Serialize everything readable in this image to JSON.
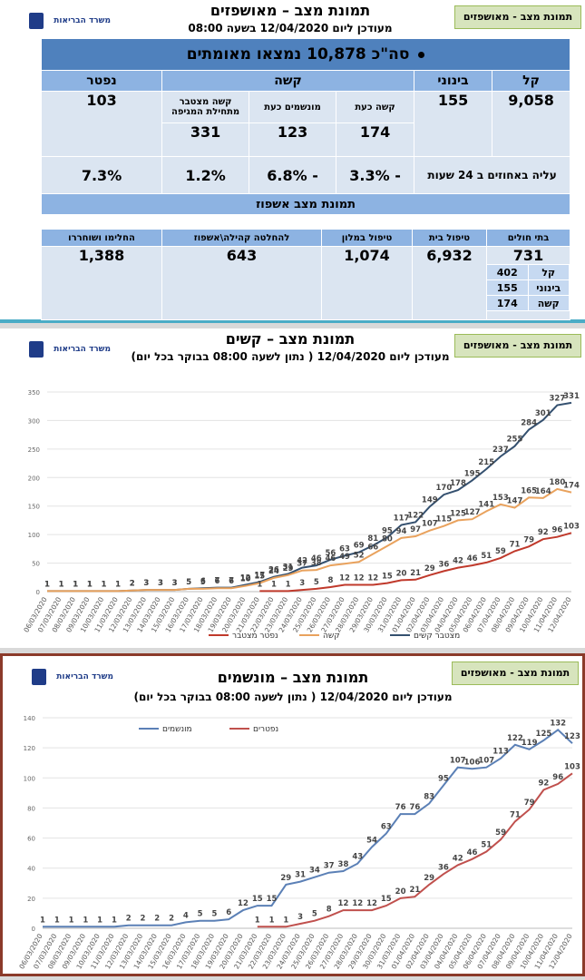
{
  "summary": {
    "badge": "תמונת מצב - מאושפזים",
    "title": "תמונת מצב – מאושפזים",
    "subtitle": "מעודכן ליום 12/04/2020 בשעה 08:00",
    "logo": "משרד הבריאות",
    "table": {
      "banner": "סה\"כ 10,878 נמצאו מאומתים",
      "columns": [
        "קל",
        "בינוני",
        "קשה",
        "נפטר"
      ],
      "severe_columns": [
        "קשה כעת",
        "מונשמים כעת",
        "קשה מצטבר מתחילת המגיפה"
      ],
      "mild": "9,058",
      "moderate": "155",
      "severe_values": [
        "174",
        "123",
        "331"
      ],
      "dead": "103",
      "change_label": "עליה באחוזים ב 24 שעות",
      "changes": [
        "- 3.3%",
        "- 6.8%",
        "1.2%",
        "7.3%"
      ],
      "hosp_title": "תמונת מצב אשפוז",
      "hosp_columns": [
        "בתי חולים",
        "טיפול בית",
        "טיפול במלון",
        "להחלטה קהילה\\אשפוז",
        "החלימו ושוחררו"
      ],
      "hosp_values": [
        "731",
        "6,932",
        "1,074",
        "643",
        "1,388"
      ],
      "hosp_breakdown": [
        [
          "קל",
          "402"
        ],
        [
          "בינוני",
          "155"
        ],
        [
          "קשה",
          "174"
        ]
      ]
    }
  },
  "chart_data": [
    {
      "type": "line",
      "badge": "תמונת מצב - מאושפזים",
      "logo": "משרד הבריאות",
      "title": "תמונת מצב – קשים",
      "subtitle": "מעודכן ליום 12/04/2020 ( נתון לשעה 08:00 בבוקר בכל יום)",
      "categories": [
        "06/03/2020",
        "07/03/2020",
        "08/03/2020",
        "09/03/2020",
        "10/03/2020",
        "11/03/2020",
        "12/03/2020",
        "13/03/2020",
        "14/03/2020",
        "15/03/2020",
        "16/03/2020",
        "17/03/2020",
        "18/03/2020",
        "19/03/2020",
        "20/03/2020",
        "21/03/2020",
        "22/03/2020",
        "23/03/2020",
        "24/03/2020",
        "25/03/2020",
        "26/03/2020",
        "27/03/2020",
        "28/03/2020",
        "29/03/2020",
        "30/03/2020",
        "31/03/2020",
        "01/04/2020",
        "02/04/2020",
        "03/04/2020",
        "04/04/2020",
        "05/04/2020",
        "06/04/2020",
        "07/04/2020",
        "08/04/2020",
        "09/04/2020",
        "10/04/2020",
        "11/04/2020",
        "12/04/2020"
      ],
      "series": [
        {
          "name": "מצטבר קשים",
          "color": "#34506f",
          "values": [
            1,
            1,
            1,
            1,
            1,
            1,
            2,
            3,
            3,
            3,
            5,
            6,
            7,
            7,
            12,
            17,
            26,
            31,
            42,
            46,
            56,
            63,
            69,
            81,
            95,
            117,
            122,
            149,
            170,
            178,
            195,
            215,
            237,
            255,
            284,
            301,
            327,
            331
          ]
        },
        {
          "name": "קשה",
          "color": "#e9a25d",
          "values": [
            1,
            1,
            1,
            1,
            1,
            1,
            2,
            3,
            3,
            3,
            5,
            5,
            6,
            6,
            10,
            15,
            24,
            29,
            37,
            38,
            46,
            49,
            52,
            66,
            80,
            94,
            97,
            107,
            115,
            125,
            127,
            141,
            153,
            147,
            165,
            164,
            180,
            174
          ]
        },
        {
          "name": "נפטר מצטבר",
          "color": "#c0392b",
          "values": [
            null,
            null,
            null,
            null,
            null,
            null,
            null,
            null,
            null,
            null,
            null,
            null,
            null,
            null,
            null,
            1,
            1,
            1,
            3,
            5,
            8,
            12,
            12,
            12,
            15,
            20,
            21,
            29,
            36,
            42,
            46,
            51,
            59,
            71,
            79,
            92,
            96,
            103
          ]
        }
      ],
      "ylim": [
        0,
        350
      ],
      "yticks": [
        0,
        50,
        100,
        150,
        200,
        250,
        300,
        350
      ],
      "grid": true
    },
    {
      "type": "line",
      "badge": "תמונת מצב - מאושפזים",
      "logo": "משרד הבריאות",
      "title": "תמונת מצב – מונשמים",
      "subtitle": "מעודכן ליום 12/04/2020 ( נתון לשעה 08:00 בבוקר בכל יום)",
      "categories": [
        "06/03/2020",
        "07/03/2020",
        "08/03/2020",
        "09/03/2020",
        "10/03/2020",
        "11/03/2020",
        "12/03/2020",
        "13/03/2020",
        "14/03/2020",
        "15/03/2020",
        "16/03/2020",
        "17/03/2020",
        "18/03/2020",
        "19/03/2020",
        "20/03/2020",
        "21/03/2020",
        "22/03/2020",
        "23/03/2020",
        "24/03/2020",
        "25/03/2020",
        "26/03/2020",
        "27/03/2020",
        "28/03/2020",
        "29/03/2020",
        "30/03/2020",
        "31/03/2020",
        "01/04/2020",
        "02/04/2020",
        "03/04/2020",
        "04/04/2020",
        "05/04/2020",
        "06/04/2020",
        "07/04/2020",
        "08/04/2020",
        "09/04/2020",
        "10/04/2020",
        "11/04/2020",
        "12/04/2020"
      ],
      "series": [
        {
          "name": "מונשמים",
          "color": "#5b80b6",
          "values": [
            1,
            1,
            1,
            1,
            1,
            1,
            2,
            2,
            2,
            2,
            4,
            5,
            5,
            6,
            12,
            15,
            15,
            29,
            31,
            34,
            37,
            38,
            43,
            54,
            63,
            76,
            76,
            83,
            95,
            107,
            106,
            107,
            113,
            122,
            119,
            125,
            132,
            123
          ]
        },
        {
          "name": "נפטרים",
          "color": "#c0504d",
          "values": [
            null,
            null,
            null,
            null,
            null,
            null,
            null,
            null,
            null,
            null,
            null,
            null,
            null,
            null,
            null,
            1,
            1,
            1,
            3,
            5,
            8,
            12,
            12,
            12,
            15,
            20,
            21,
            29,
            36,
            42,
            46,
            51,
            59,
            71,
            79,
            92,
            96,
            103
          ]
        }
      ],
      "ylim": [
        0,
        140
      ],
      "yticks": [
        0,
        20,
        40,
        60,
        80,
        100,
        120,
        140
      ],
      "grid": true
    }
  ]
}
